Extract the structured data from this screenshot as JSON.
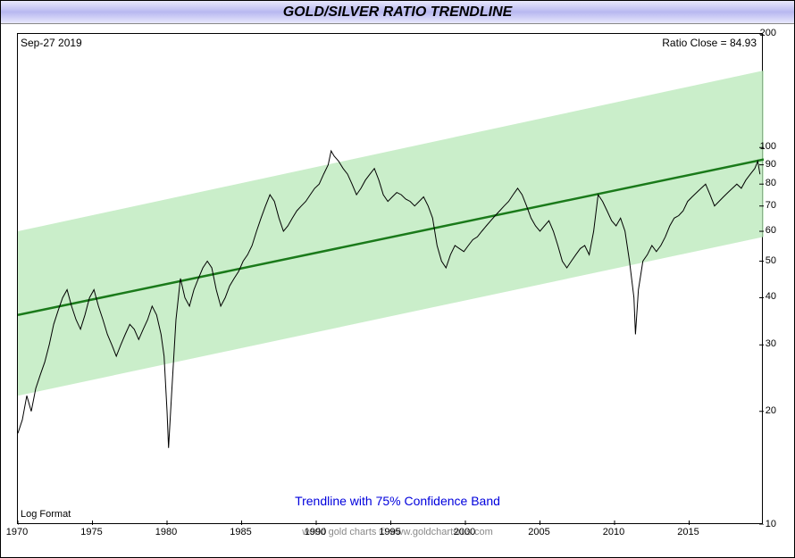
{
  "title": "GOLD/SILVER RATIO TRENDLINE",
  "date_label": "Sep-27  2019",
  "ratio_close_label": "Ratio Close = 84.93",
  "subtitle": "Trendline with 75% Confidence Band",
  "log_format_label": "Log Format",
  "attribution": "world gold charts © www.goldchartsrus.com",
  "chart": {
    "type": "line",
    "y_scale": "log",
    "xlim": [
      1970,
      2020
    ],
    "ylim": [
      10,
      200
    ],
    "x_ticks": [
      1970,
      1975,
      1980,
      1985,
      1990,
      1995,
      2000,
      2005,
      2010,
      2015
    ],
    "y_ticks": [
      10,
      20,
      30,
      40,
      50,
      60,
      70,
      80,
      90,
      100,
      200
    ],
    "background_color": "#ffffff",
    "grid": false,
    "chart_border_color": "#000000",
    "title_bar_gradient": [
      "#e8e8fc",
      "#b8b8f0",
      "#e8e8fc"
    ],
    "title_fontsize": 16,
    "title_fontweight": "bold",
    "title_fontstyle": "italic",
    "tick_fontsize": 11,
    "subtitle_color": "#0000dd",
    "subtitle_fontsize": 14,
    "attribution_color": "#888888",
    "attribution_fontsize": 11,
    "confidence_band": {
      "fill_color": "#b8e8b8",
      "opacity": 0.75,
      "upper": [
        [
          1970,
          60
        ],
        [
          2020,
          160
        ]
      ],
      "lower": [
        [
          1970,
          22
        ],
        [
          2020,
          58
        ]
      ]
    },
    "trendline": {
      "color": "#1a7a1a",
      "width": 2.5,
      "points": [
        [
          1970,
          36
        ],
        [
          2020,
          93
        ]
      ]
    },
    "data_line": {
      "color": "#000000",
      "width": 1,
      "points": [
        [
          1970.0,
          17.5
        ],
        [
          1970.3,
          19
        ],
        [
          1970.6,
          22
        ],
        [
          1970.9,
          20
        ],
        [
          1971.2,
          23
        ],
        [
          1971.5,
          25
        ],
        [
          1971.8,
          27
        ],
        [
          1972.1,
          30
        ],
        [
          1972.4,
          34
        ],
        [
          1972.7,
          37
        ],
        [
          1973.0,
          40
        ],
        [
          1973.3,
          42
        ],
        [
          1973.6,
          38
        ],
        [
          1973.9,
          35
        ],
        [
          1974.2,
          33
        ],
        [
          1974.5,
          36
        ],
        [
          1974.8,
          40
        ],
        [
          1975.1,
          42
        ],
        [
          1975.4,
          38
        ],
        [
          1975.7,
          35
        ],
        [
          1976.0,
          32
        ],
        [
          1976.3,
          30
        ],
        [
          1976.6,
          28
        ],
        [
          1976.9,
          30
        ],
        [
          1977.2,
          32
        ],
        [
          1977.5,
          34
        ],
        [
          1977.8,
          33
        ],
        [
          1978.1,
          31
        ],
        [
          1978.4,
          33
        ],
        [
          1978.7,
          35
        ],
        [
          1979.0,
          38
        ],
        [
          1979.3,
          36
        ],
        [
          1979.6,
          32
        ],
        [
          1979.8,
          28
        ],
        [
          1980.0,
          20
        ],
        [
          1980.1,
          16
        ],
        [
          1980.3,
          22
        ],
        [
          1980.6,
          35
        ],
        [
          1980.9,
          45
        ],
        [
          1981.2,
          40
        ],
        [
          1981.5,
          38
        ],
        [
          1981.8,
          42
        ],
        [
          1982.1,
          45
        ],
        [
          1982.4,
          48
        ],
        [
          1982.7,
          50
        ],
        [
          1983.0,
          48
        ],
        [
          1983.3,
          42
        ],
        [
          1983.6,
          38
        ],
        [
          1983.9,
          40
        ],
        [
          1984.2,
          43
        ],
        [
          1984.5,
          45
        ],
        [
          1984.8,
          47
        ],
        [
          1985.1,
          50
        ],
        [
          1985.4,
          52
        ],
        [
          1985.7,
          55
        ],
        [
          1986.0,
          60
        ],
        [
          1986.3,
          65
        ],
        [
          1986.6,
          70
        ],
        [
          1986.9,
          75
        ],
        [
          1987.2,
          72
        ],
        [
          1987.5,
          65
        ],
        [
          1987.8,
          60
        ],
        [
          1988.1,
          62
        ],
        [
          1988.4,
          65
        ],
        [
          1988.7,
          68
        ],
        [
          1989.0,
          70
        ],
        [
          1989.3,
          72
        ],
        [
          1989.6,
          75
        ],
        [
          1989.9,
          78
        ],
        [
          1990.2,
          80
        ],
        [
          1990.5,
          85
        ],
        [
          1990.8,
          90
        ],
        [
          1991.0,
          98
        ],
        [
          1991.2,
          95
        ],
        [
          1991.5,
          92
        ],
        [
          1991.8,
          88
        ],
        [
          1992.1,
          85
        ],
        [
          1992.4,
          80
        ],
        [
          1992.7,
          75
        ],
        [
          1993.0,
          78
        ],
        [
          1993.3,
          82
        ],
        [
          1993.6,
          85
        ],
        [
          1993.9,
          88
        ],
        [
          1994.2,
          82
        ],
        [
          1994.5,
          75
        ],
        [
          1994.8,
          72
        ],
        [
          1995.1,
          74
        ],
        [
          1995.4,
          76
        ],
        [
          1995.7,
          75
        ],
        [
          1996.0,
          73
        ],
        [
          1996.3,
          72
        ],
        [
          1996.6,
          70
        ],
        [
          1996.9,
          72
        ],
        [
          1997.2,
          74
        ],
        [
          1997.5,
          70
        ],
        [
          1997.8,
          65
        ],
        [
          1998.1,
          55
        ],
        [
          1998.4,
          50
        ],
        [
          1998.7,
          48
        ],
        [
          1999.0,
          52
        ],
        [
          1999.3,
          55
        ],
        [
          1999.6,
          54
        ],
        [
          1999.9,
          53
        ],
        [
          2000.2,
          55
        ],
        [
          2000.5,
          57
        ],
        [
          2000.8,
          58
        ],
        [
          2001.1,
          60
        ],
        [
          2001.4,
          62
        ],
        [
          2001.7,
          64
        ],
        [
          2002.0,
          66
        ],
        [
          2002.3,
          68
        ],
        [
          2002.6,
          70
        ],
        [
          2002.9,
          72
        ],
        [
          2003.2,
          75
        ],
        [
          2003.5,
          78
        ],
        [
          2003.8,
          75
        ],
        [
          2004.1,
          70
        ],
        [
          2004.4,
          65
        ],
        [
          2004.7,
          62
        ],
        [
          2005.0,
          60
        ],
        [
          2005.3,
          62
        ],
        [
          2005.6,
          64
        ],
        [
          2005.9,
          60
        ],
        [
          2006.2,
          55
        ],
        [
          2006.5,
          50
        ],
        [
          2006.8,
          48
        ],
        [
          2007.1,
          50
        ],
        [
          2007.4,
          52
        ],
        [
          2007.7,
          54
        ],
        [
          2008.0,
          55
        ],
        [
          2008.3,
          52
        ],
        [
          2008.6,
          60
        ],
        [
          2008.9,
          75
        ],
        [
          2009.2,
          72
        ],
        [
          2009.5,
          68
        ],
        [
          2009.8,
          64
        ],
        [
          2010.1,
          62
        ],
        [
          2010.4,
          65
        ],
        [
          2010.7,
          60
        ],
        [
          2011.0,
          50
        ],
        [
          2011.3,
          40
        ],
        [
          2011.4,
          32
        ],
        [
          2011.6,
          42
        ],
        [
          2011.9,
          50
        ],
        [
          2012.2,
          52
        ],
        [
          2012.5,
          55
        ],
        [
          2012.8,
          53
        ],
        [
          2013.1,
          55
        ],
        [
          2013.4,
          58
        ],
        [
          2013.7,
          62
        ],
        [
          2014.0,
          65
        ],
        [
          2014.3,
          66
        ],
        [
          2014.6,
          68
        ],
        [
          2014.9,
          72
        ],
        [
          2015.2,
          74
        ],
        [
          2015.5,
          76
        ],
        [
          2015.8,
          78
        ],
        [
          2016.1,
          80
        ],
        [
          2016.4,
          75
        ],
        [
          2016.7,
          70
        ],
        [
          2017.0,
          72
        ],
        [
          2017.3,
          74
        ],
        [
          2017.6,
          76
        ],
        [
          2017.9,
          78
        ],
        [
          2018.2,
          80
        ],
        [
          2018.5,
          78
        ],
        [
          2018.8,
          82
        ],
        [
          2019.1,
          85
        ],
        [
          2019.4,
          88
        ],
        [
          2019.6,
          92
        ],
        [
          2019.75,
          84.93
        ]
      ]
    }
  }
}
